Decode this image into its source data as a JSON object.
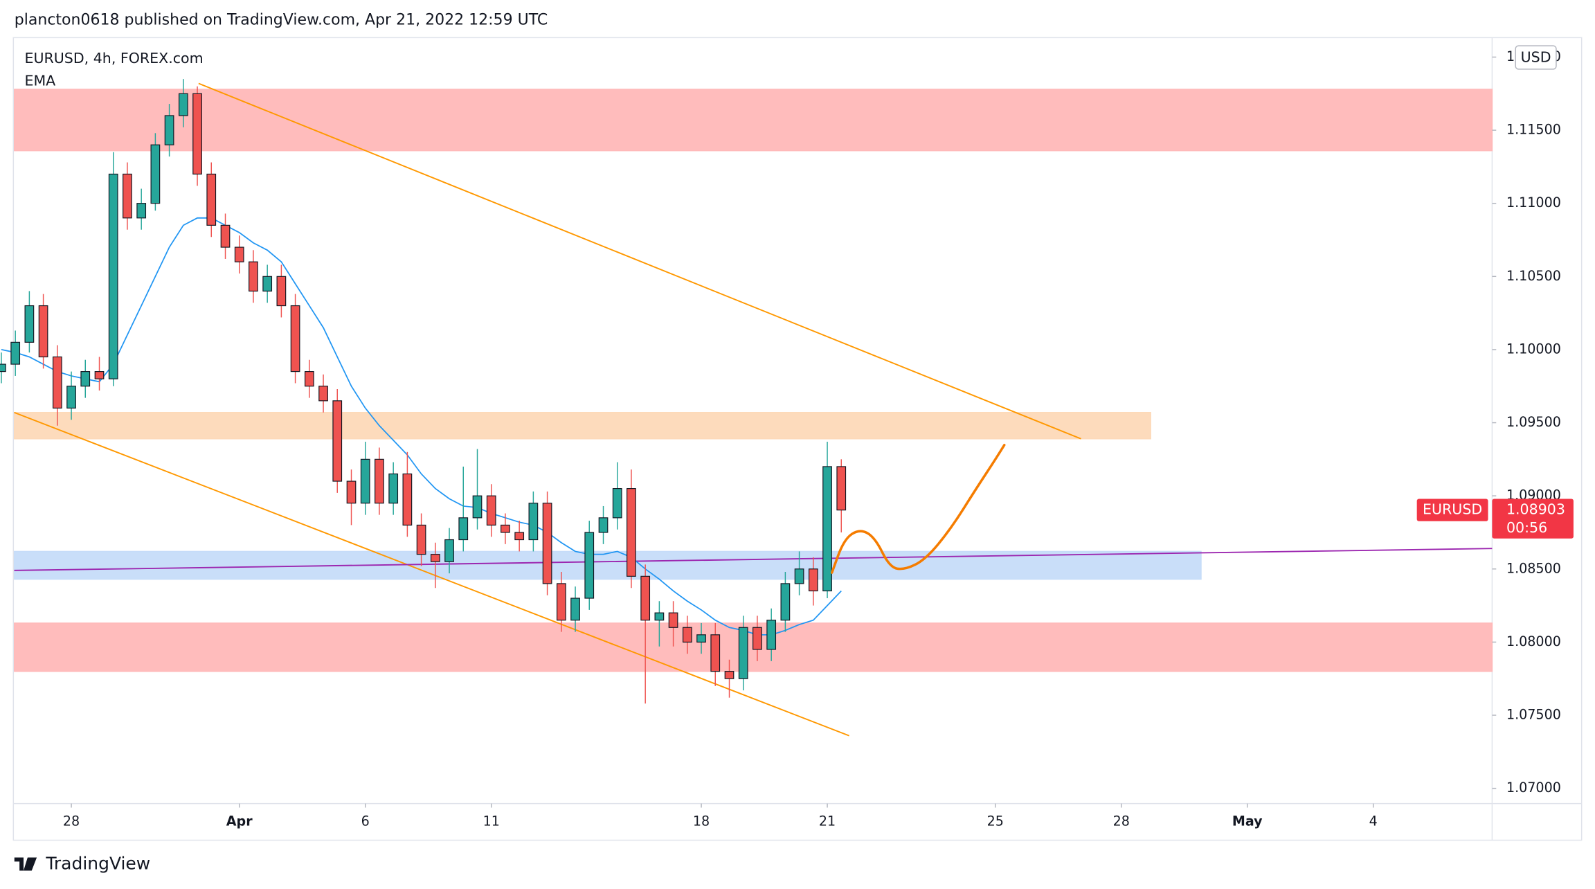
{
  "header": {
    "published": "plancton0618 published on TradingView.com, Apr 21, 2022 12:59 UTC"
  },
  "footer": {
    "brand": "TradingView"
  },
  "chart_data": {
    "type": "candlestick",
    "title": "EURUSD, 4h, FOREX.com",
    "currency": "USD",
    "xlim": [
      -1.356,
      33.83
    ],
    "ylim": [
      1.06896,
      1.12133
    ],
    "xticks": [
      {
        "value": 0,
        "label": "28"
      },
      {
        "value": 4,
        "label": "Apr"
      },
      {
        "value": 7,
        "label": "6"
      },
      {
        "value": 10,
        "label": "11"
      },
      {
        "value": 15,
        "label": "18"
      },
      {
        "value": 18,
        "label": "21"
      },
      {
        "value": 22,
        "label": "25"
      },
      {
        "value": 25,
        "label": "28"
      },
      {
        "value": 28,
        "label": "May"
      },
      {
        "value": 31,
        "label": "4"
      }
    ],
    "yticks": [
      {
        "value": 1.07,
        "label": "1.07000"
      },
      {
        "value": 1.075,
        "label": "1.07500"
      },
      {
        "value": 1.08,
        "label": "1.08000"
      },
      {
        "value": 1.085,
        "label": "1.08500"
      },
      {
        "value": 1.09,
        "label": "1.09000"
      },
      {
        "value": 1.095,
        "label": "1.09500"
      },
      {
        "value": 1.1,
        "label": "1.10000"
      },
      {
        "value": 1.105,
        "label": "1.10500"
      },
      {
        "value": 1.11,
        "label": "1.11000"
      },
      {
        "value": 1.115,
        "label": "1.11500"
      },
      {
        "value": 1.12,
        "label": "1.12000"
      }
    ],
    "up_color": "#26a69a",
    "down_color": "#ef5350",
    "x": [
      -1.667,
      -1.333,
      -1.0,
      -0.667,
      -0.333,
      0.0,
      0.333,
      0.667,
      1.0,
      1.333,
      1.667,
      2.0,
      2.333,
      2.667,
      3.0,
      3.333,
      3.667,
      4.0,
      4.333,
      4.667,
      5.0,
      5.333,
      5.667,
      6.0,
      6.333,
      6.667,
      7.0,
      7.333,
      7.667,
      8.0,
      8.333,
      8.667,
      9.0,
      9.333,
      9.667,
      10.0,
      10.333,
      10.667,
      11.0,
      11.333,
      11.667,
      12.0,
      12.333,
      12.667,
      13.0,
      13.333,
      13.667,
      14.0,
      14.333,
      14.667,
      15.0,
      15.333,
      15.667,
      16.0,
      16.333,
      16.667,
      17.0,
      17.333,
      17.667,
      18.0,
      18.333
    ],
    "open": [
      1.0985,
      1.099,
      1.1005,
      1.103,
      1.0995,
      1.096,
      1.0975,
      1.0985,
      1.098,
      1.112,
      1.109,
      1.11,
      1.114,
      1.116,
      1.1175,
      1.112,
      1.1085,
      1.107,
      1.106,
      1.104,
      1.105,
      1.103,
      1.0985,
      1.0975,
      1.0965,
      1.091,
      1.0895,
      1.0925,
      1.0895,
      1.0915,
      1.088,
      1.086,
      1.0855,
      1.087,
      1.0885,
      1.09,
      1.088,
      1.0875,
      1.087,
      1.0895,
      1.084,
      1.0815,
      1.083,
      1.0875,
      1.0885,
      1.0905,
      1.0845,
      1.0815,
      1.082,
      1.081,
      1.08,
      1.0805,
      1.078,
      1.0775,
      1.081,
      1.0795,
      1.0815,
      1.084,
      1.085,
      1.0835,
      1.092
    ],
    "high": [
      1.0998,
      1.1013,
      1.104,
      1.1038,
      1.1003,
      1.0985,
      1.0993,
      1.0995,
      1.1135,
      1.1128,
      1.111,
      1.1148,
      1.1168,
      1.1185,
      1.118,
      1.1128,
      1.1093,
      1.1078,
      1.1068,
      1.1058,
      1.1058,
      1.1038,
      1.0993,
      1.0983,
      1.0973,
      1.0918,
      1.0937,
      1.0933,
      1.0923,
      1.093,
      1.0888,
      1.0868,
      1.0878,
      1.092,
      1.0932,
      1.0908,
      1.0888,
      1.0883,
      1.0903,
      1.0903,
      1.0848,
      1.0838,
      1.0883,
      1.0893,
      1.0923,
      1.0918,
      1.0853,
      1.0828,
      1.0828,
      1.0818,
      1.0813,
      1.0813,
      1.0788,
      1.0818,
      1.0818,
      1.0823,
      1.0848,
      1.0862,
      1.0858,
      1.0937,
      1.0925
    ],
    "low": [
      1.0977,
      1.0982,
      1.0998,
      1.0987,
      1.0948,
      1.0952,
      1.0967,
      1.0972,
      1.0975,
      1.1082,
      1.1082,
      1.1095,
      1.1132,
      1.1152,
      1.1112,
      1.1077,
      1.1062,
      1.1052,
      1.1032,
      1.1032,
      1.1022,
      1.0977,
      1.0967,
      1.0957,
      1.0902,
      1.088,
      1.0887,
      1.0887,
      1.0887,
      1.0872,
      1.0852,
      1.0837,
      1.0847,
      1.0862,
      1.0877,
      1.0872,
      1.0867,
      1.0862,
      1.0862,
      1.0832,
      1.0807,
      1.0807,
      1.0822,
      1.0867,
      1.0877,
      1.0837,
      1.0758,
      1.0797,
      1.0797,
      1.0792,
      1.0792,
      1.077,
      1.0762,
      1.0767,
      1.0787,
      1.0787,
      1.0807,
      1.0832,
      1.0825,
      1.083,
      1.0875
    ],
    "close": [
      1.099,
      1.1005,
      1.103,
      1.0995,
      1.096,
      1.0975,
      1.0985,
      1.098,
      1.112,
      1.109,
      1.11,
      1.114,
      1.116,
      1.1175,
      1.112,
      1.1085,
      1.107,
      1.106,
      1.104,
      1.105,
      1.103,
      1.0985,
      1.0975,
      1.0965,
      1.091,
      1.0895,
      1.0925,
      1.0895,
      1.0915,
      1.088,
      1.086,
      1.0855,
      1.087,
      1.0885,
      1.09,
      1.088,
      1.0875,
      1.087,
      1.0895,
      1.084,
      1.0815,
      1.083,
      1.0875,
      1.0885,
      1.0905,
      1.0845,
      1.0815,
      1.082,
      1.081,
      1.08,
      1.0805,
      1.078,
      1.0775,
      1.081,
      1.0795,
      1.0815,
      1.084,
      1.085,
      1.0835,
      1.092,
      1.08903
    ],
    "series": [
      {
        "name": "EMA",
        "color": "#2196f3",
        "values": [
          1.1,
          1.0998,
          1.0995,
          1.099,
          1.0985,
          1.0982,
          1.098,
          1.0978,
          1.099,
          1.101,
          1.103,
          1.105,
          1.107,
          1.1085,
          1.109,
          1.109,
          1.1085,
          1.108,
          1.1073,
          1.1068,
          1.106,
          1.1045,
          1.103,
          1.1015,
          1.0995,
          1.0975,
          1.096,
          1.0948,
          1.0938,
          1.0928,
          1.0915,
          1.0905,
          1.0898,
          1.0893,
          1.0892,
          1.0888,
          1.0885,
          1.0882,
          1.088,
          1.0875,
          1.0868,
          1.0862,
          1.086,
          1.086,
          1.0862,
          1.0858,
          1.085,
          1.0843,
          1.0835,
          1.0828,
          1.0822,
          1.0815,
          1.081,
          1.0808,
          1.0805,
          1.0805,
          1.0808,
          1.0812,
          1.0815,
          1.0825,
          1.0835
        ]
      }
    ],
    "last_price": {
      "symbol": "EURUSD",
      "value": 1.08903,
      "countdown": "00:56",
      "color": "#f23645"
    },
    "zones": [
      {
        "x": [
          -1.356,
          33.83
        ],
        "y": [
          1.1136,
          1.1178
        ],
        "color": "#ffb8b8"
      },
      {
        "x": [
          -1.356,
          25.7
        ],
        "y": [
          1.0939,
          1.0957
        ],
        "color": "#fdd9b8"
      },
      {
        "x": [
          -1.356,
          26.9
        ],
        "y": [
          1.0843,
          1.0862
        ],
        "color": "#c6dcf9"
      },
      {
        "x": [
          -1.356,
          33.83
        ],
        "y": [
          1.078,
          1.0813
        ],
        "color": "#ffb8b8"
      }
    ],
    "lines": [
      {
        "x": [
          3.03,
          24.04
        ],
        "values": [
          1.1182,
          1.0939
        ],
        "color": "#ff9800"
      },
      {
        "x": [
          -1.36,
          18.52
        ],
        "values": [
          1.0957,
          1.0736
        ],
        "color": "#ff9800"
      },
      {
        "x": [
          -1.36,
          33.83
        ],
        "values": [
          1.0849,
          1.0864
        ],
        "color": "#9c27b0"
      }
    ],
    "projection": {
      "color": "#f57c00",
      "x": [
        18.11,
        18.4,
        18.77,
        19.13,
        19.49,
        19.85,
        20.34,
        20.94,
        21.55,
        22.03,
        22.4
      ],
      "values": [
        1.08475,
        1.08704,
        1.08774,
        1.08718,
        1.08509,
        1.08495,
        1.08565,
        1.08774,
        1.09052,
        1.09261,
        1.09434
      ]
    }
  }
}
